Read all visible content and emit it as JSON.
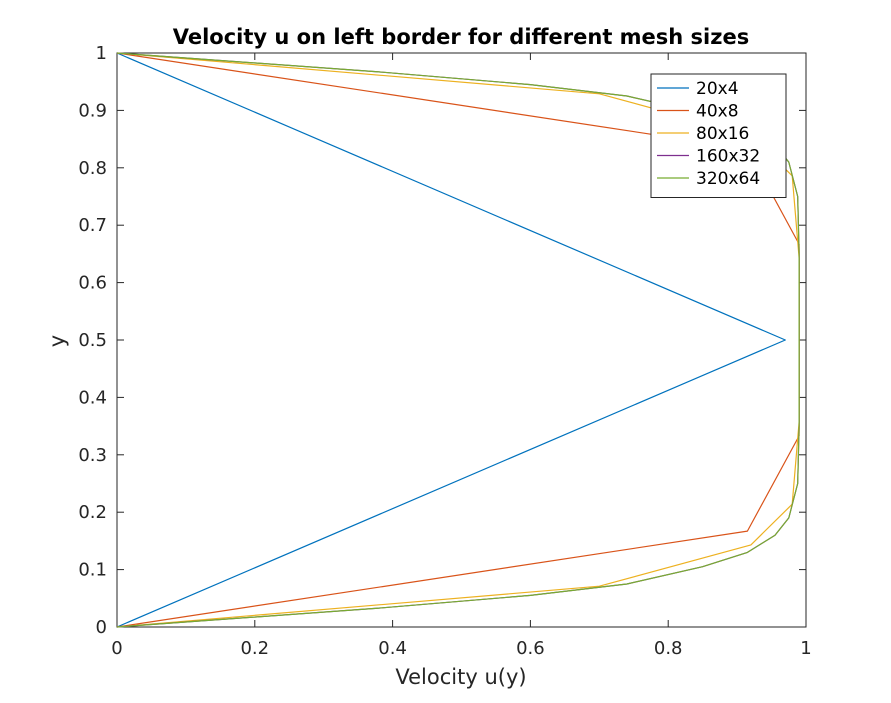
{
  "chart_data": {
    "type": "line",
    "title": "Velocity u on left border for different mesh sizes",
    "xlabel": "Velocity u(y)",
    "ylabel": "y",
    "xlim": [
      0,
      1
    ],
    "ylim": [
      0,
      1
    ],
    "xticks": [
      "0",
      "0.2",
      "0.4",
      "0.6",
      "0.8",
      "1"
    ],
    "yticks": [
      "0",
      "0.1",
      "0.2",
      "0.3",
      "0.4",
      "0.5",
      "0.6",
      "0.7",
      "0.8",
      "0.9",
      "1"
    ],
    "grid": false,
    "legend_position": "top-right",
    "series": [
      {
        "name": "20x4",
        "color": "#0072BD",
        "x": [
          0,
          0.97,
          0
        ],
        "y": [
          0,
          0.5,
          1
        ]
      },
      {
        "name": "40x8",
        "color": "#D95319",
        "x": [
          0,
          0.915,
          0.99,
          0.99,
          0.915,
          0
        ],
        "y": [
          0,
          0.167,
          0.333,
          0.667,
          0.833,
          1
        ]
      },
      {
        "name": "80x16",
        "color": "#EDB120",
        "x": [
          0,
          0.7,
          0.92,
          0.98,
          0.99,
          0.99,
          0.99,
          0.98,
          0.92,
          0.7,
          0
        ],
        "y": [
          0,
          0.071,
          0.143,
          0.214,
          0.357,
          0.5,
          0.643,
          0.786,
          0.857,
          0.929,
          1
        ]
      },
      {
        "name": "160x32",
        "color": "#7E2F8E",
        "x": [
          0,
          0.38,
          0.6,
          0.74,
          0.85,
          0.915,
          0.955,
          0.975,
          0.988,
          0.99,
          0.99,
          0.99,
          0.988,
          0.975,
          0.955,
          0.915,
          0.85,
          0.74,
          0.6,
          0.38,
          0
        ],
        "y": [
          0,
          0.033,
          0.055,
          0.075,
          0.105,
          0.13,
          0.16,
          0.19,
          0.25,
          0.35,
          0.5,
          0.65,
          0.75,
          0.81,
          0.84,
          0.87,
          0.895,
          0.925,
          0.945,
          0.967,
          1
        ]
      },
      {
        "name": "320x64",
        "color": "#77AC30",
        "x": [
          0,
          0.38,
          0.6,
          0.74,
          0.85,
          0.915,
          0.955,
          0.975,
          0.988,
          0.99,
          0.99,
          0.99,
          0.988,
          0.975,
          0.955,
          0.915,
          0.85,
          0.74,
          0.6,
          0.38,
          0
        ],
        "y": [
          0,
          0.033,
          0.055,
          0.075,
          0.105,
          0.13,
          0.16,
          0.19,
          0.25,
          0.35,
          0.5,
          0.65,
          0.75,
          0.81,
          0.84,
          0.87,
          0.895,
          0.925,
          0.945,
          0.967,
          1
        ]
      }
    ]
  }
}
